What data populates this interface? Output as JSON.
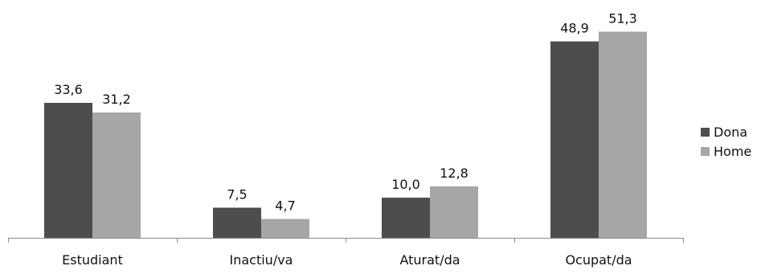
{
  "chart_data": {
    "type": "bar",
    "categories": [
      "Estudiant",
      "Inactiu/va",
      "Aturat/da",
      "Ocupat/da"
    ],
    "series": [
      {
        "name": "Dona",
        "values": [
          33.6,
          7.5,
          10.0,
          48.9
        ],
        "labels": [
          "33,6",
          "7,5",
          "10,0",
          "48,9"
        ],
        "color": "#4d4d4d"
      },
      {
        "name": "Home",
        "values": [
          31.2,
          4.7,
          12.8,
          51.3
        ],
        "labels": [
          "31,2",
          "4,7",
          "12,8",
          "51,3"
        ],
        "color": "#a6a6a6"
      }
    ],
    "title": "",
    "xlabel": "",
    "ylabel": "",
    "ylim": [
      0,
      55
    ],
    "grid": false,
    "legend_position": "right"
  }
}
